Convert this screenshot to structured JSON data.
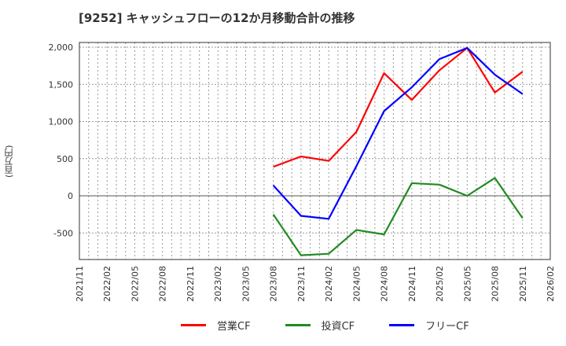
{
  "header": {
    "title": "[9252]  キャッシュフローの12か月移動合計の推移"
  },
  "axis": {
    "ylabel": "(百万円)"
  },
  "legend": [
    {
      "label": "営業CF",
      "color": "#ff0000"
    },
    {
      "label": "投資CF",
      "color": "#228b22"
    },
    {
      "label": "フリーCF",
      "color": "#0000ff"
    }
  ],
  "chart_data": {
    "type": "line",
    "title": "[9252]  キャッシュフローの12か月移動合計の推移",
    "xlabel": "",
    "ylabel": "(百万円)",
    "ylim": [
      -850,
      2050
    ],
    "yticks": [
      -500,
      0,
      500,
      1000,
      1500,
      2000
    ],
    "ytick_labels": [
      "-500",
      "0",
      "500",
      "1,000",
      "1,500",
      "2,000"
    ],
    "xtick_labels": [
      "2021/11",
      "2022/02",
      "2022/05",
      "2022/08",
      "2022/11",
      "2023/02",
      "2023/05",
      "2023/08",
      "2023/11",
      "2024/02",
      "2024/05",
      "2024/08",
      "2024/11",
      "2025/02",
      "2025/05",
      "2025/08",
      "2025/11",
      "2026/02"
    ],
    "grid": true,
    "legend_position": "bottom",
    "x": [
      "2023/08",
      "2023/11",
      "2024/02",
      "2024/05",
      "2024/08",
      "2024/11",
      "2025/02",
      "2025/05",
      "2025/08",
      "2025/11"
    ],
    "series": [
      {
        "name": "営業CF",
        "color": "#ff0000",
        "values": [
          390,
          530,
          470,
          860,
          1650,
          1290,
          1690,
          1990,
          1390,
          1670
        ]
      },
      {
        "name": "投資CF",
        "color": "#228b22",
        "values": [
          -250,
          -800,
          -780,
          -460,
          -520,
          170,
          150,
          0,
          240,
          -300
        ]
      },
      {
        "name": "フリーCF",
        "color": "#0000ff",
        "values": [
          140,
          -270,
          -310,
          400,
          1140,
          1460,
          1840,
          1990,
          1630,
          1370
        ]
      }
    ]
  }
}
